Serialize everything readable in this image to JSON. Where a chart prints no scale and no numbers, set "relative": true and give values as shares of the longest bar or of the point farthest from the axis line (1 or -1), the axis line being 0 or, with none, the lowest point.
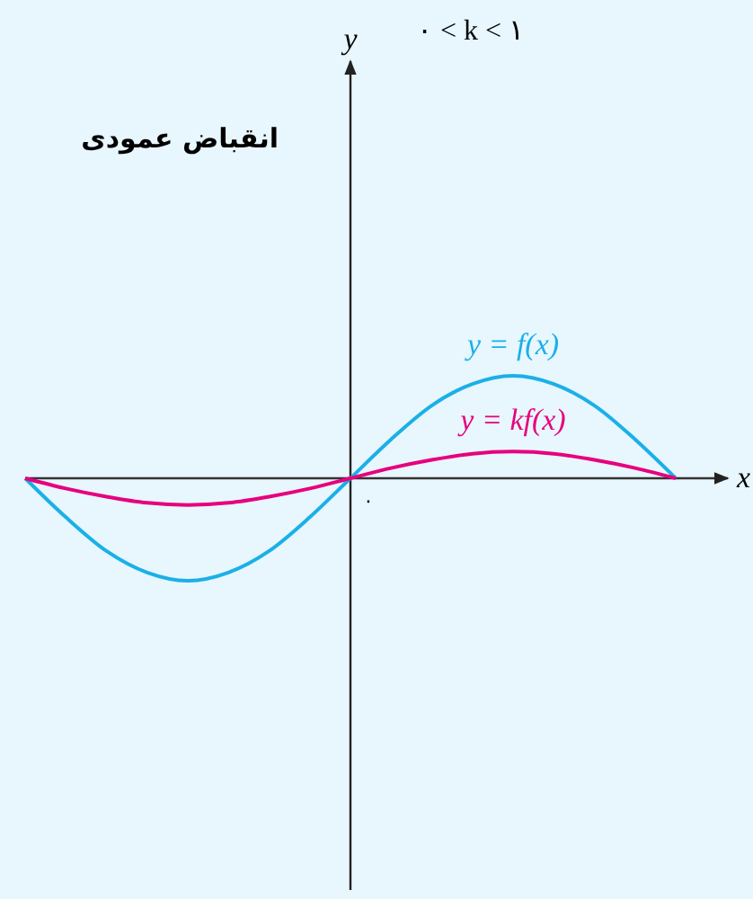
{
  "chart_data": {
    "type": "line",
    "relative": true,
    "title": "انقباض عمودی",
    "subtitle": "۰ < k < ۱",
    "xlabel": "x",
    "annotations": [
      "۰",
      "y"
    ],
    "marker": "none",
    "line_style": "solid",
    "categories": [
      null,
      null,
      null,
      null,
      null,
      null,
      null,
      null,
      null,
      null,
      null,
      null,
      null,
      null,
      null,
      null,
      null
    ],
    "series": [
      {
        "name": "y = f(x)",
        "color": "#1ab0e8",
        "values": [
          0,
          -0.38,
          -0.71,
          -0.92,
          -1,
          -0.92,
          -0.71,
          -0.38,
          0,
          0.38,
          0.71,
          0.92,
          1,
          0.92,
          0.71,
          0.38,
          0
        ]
      },
      {
        "name": "y = kf(x)",
        "color": "#e6007e",
        "values": [
          0,
          -0.1,
          -0.18,
          -0.24,
          -0.26,
          -0.24,
          -0.18,
          -0.1,
          0,
          0.1,
          0.18,
          0.24,
          0.26,
          0.24,
          0.18,
          0.1,
          0
        ]
      }
    ]
  }
}
